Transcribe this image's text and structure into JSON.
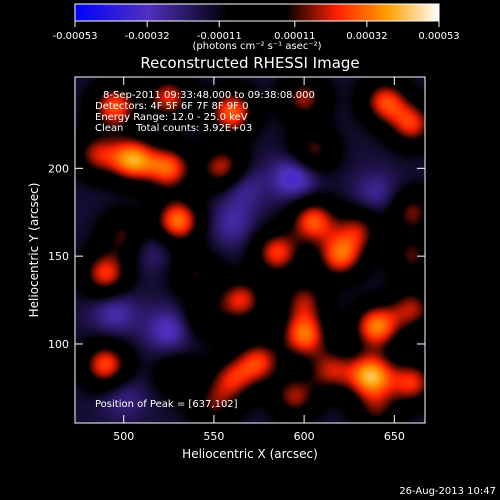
{
  "chart_data": {
    "type": "heatmap",
    "title": "Reconstructed RHESSI Image",
    "xlabel": "Heliocentric X (arcsec)",
    "ylabel": "Heliocentric Y (arcsec)",
    "xlim": [
      473,
      667
    ],
    "ylim": [
      55,
      252
    ],
    "x_ticks": [
      500,
      550,
      600,
      650
    ],
    "y_ticks": [
      100,
      150,
      200
    ],
    "colorbar": {
      "range": [
        -0.00053,
        0.00053
      ],
      "tick_values": [
        -0.00053,
        -0.00032,
        -0.00011,
        0.00011,
        0.00032,
        0.00053
      ],
      "tick_labels": [
        "-0.00053",
        "-0.00032",
        "-0.00011",
        "0.00011",
        "0.00032",
        "0.00053"
      ],
      "units": "(photons cm⁻² s⁻¹ asec⁻²)"
    },
    "info_lines": [
      "8-Sep-2011 09:33:48.000 to 09:38:08.000",
      "Detectors: 4F 5F 6F 7F 8F 9F 0",
      "Energy Range: 12.0 - 25.0 keV",
      "Clean    Total counts: 3.92E+03"
    ],
    "peak_label": "Position of Peak = [637,102]",
    "peak": {
      "x": 637,
      "y": 102
    },
    "sources": [
      {
        "x": 495,
        "y": 235,
        "v": 0.8
      },
      {
        "x": 525,
        "y": 240,
        "v": 0.7
      },
      {
        "x": 560,
        "y": 232,
        "v": 0.85
      },
      {
        "x": 600,
        "y": 240,
        "v": 0.6
      },
      {
        "x": 645,
        "y": 238,
        "v": 0.75
      },
      {
        "x": 660,
        "y": 225,
        "v": 0.7
      },
      {
        "x": 505,
        "y": 205,
        "v": 0.95
      },
      {
        "x": 525,
        "y": 200,
        "v": 0.8
      },
      {
        "x": 555,
        "y": 200,
        "v": 0.7
      },
      {
        "x": 485,
        "y": 208,
        "v": 0.6
      },
      {
        "x": 605,
        "y": 210,
        "v": 0.55
      },
      {
        "x": 595,
        "y": 195,
        "v": -0.45
      },
      {
        "x": 565,
        "y": 190,
        "v": -0.3
      },
      {
        "x": 640,
        "y": 185,
        "v": -0.25
      },
      {
        "x": 530,
        "y": 170,
        "v": 0.9
      },
      {
        "x": 500,
        "y": 162,
        "v": 0.5
      },
      {
        "x": 560,
        "y": 168,
        "v": -0.25
      },
      {
        "x": 605,
        "y": 170,
        "v": 0.8
      },
      {
        "x": 630,
        "y": 165,
        "v": 0.55
      },
      {
        "x": 660,
        "y": 175,
        "v": 0.55
      },
      {
        "x": 585,
        "y": 152,
        "v": 0.75
      },
      {
        "x": 620,
        "y": 150,
        "v": 0.8
      },
      {
        "x": 660,
        "y": 150,
        "v": 0.5
      },
      {
        "x": 490,
        "y": 140,
        "v": 0.75
      },
      {
        "x": 540,
        "y": 140,
        "v": 0.45
      },
      {
        "x": 515,
        "y": 155,
        "v": -0.2
      },
      {
        "x": 495,
        "y": 118,
        "v": -0.3
      },
      {
        "x": 565,
        "y": 125,
        "v": 0.7
      },
      {
        "x": 600,
        "y": 125,
        "v": 0.55
      },
      {
        "x": 545,
        "y": 115,
        "v": 0.35
      },
      {
        "x": 525,
        "y": 108,
        "v": -0.35
      },
      {
        "x": 640,
        "y": 110,
        "v": 0.9
      },
      {
        "x": 660,
        "y": 120,
        "v": 0.6
      },
      {
        "x": 600,
        "y": 105,
        "v": 0.85
      },
      {
        "x": 490,
        "y": 88,
        "v": 0.8
      },
      {
        "x": 575,
        "y": 90,
        "v": 0.7
      },
      {
        "x": 560,
        "y": 80,
        "v": 0.6
      },
      {
        "x": 530,
        "y": 82,
        "v": 0.35
      },
      {
        "x": 615,
        "y": 85,
        "v": 0.6
      },
      {
        "x": 637,
        "y": 82,
        "v": 1.0
      },
      {
        "x": 660,
        "y": 78,
        "v": 0.7
      },
      {
        "x": 595,
        "y": 70,
        "v": 0.6
      },
      {
        "x": 500,
        "y": 70,
        "v": -0.2
      },
      {
        "x": 550,
        "y": 65,
        "v": 0.45
      },
      {
        "x": 640,
        "y": 62,
        "v": 0.45
      }
    ]
  },
  "footer": {
    "timestamp": "26-Aug-2013 10:47"
  }
}
